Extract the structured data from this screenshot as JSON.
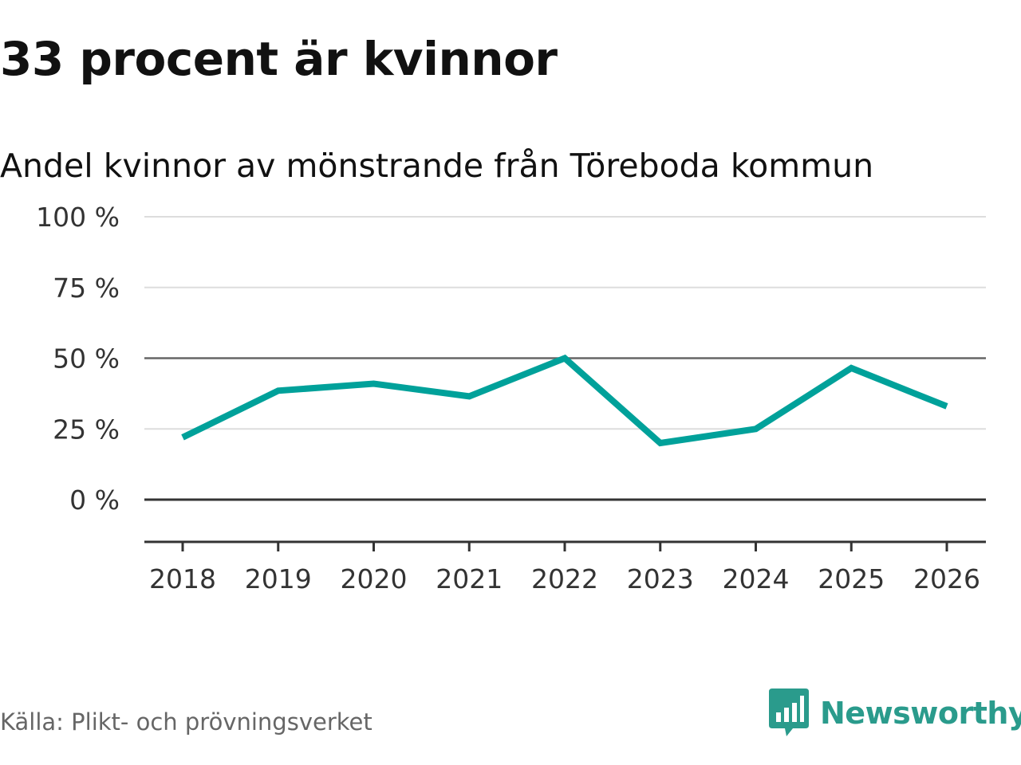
{
  "header": {
    "title": "33 procent är kvinnor",
    "subtitle": "Andel kvinnor av mönstrande från Töreboda kommun"
  },
  "footer": {
    "source": "Källa: Plikt- och prövningsverket",
    "brand": "Newsworthy",
    "brand_icon": "bar-chart-speech-bubble-icon"
  },
  "colors": {
    "line": "#00a19a",
    "grid": "#dddddd",
    "reference": "#666666",
    "axis": "#333333",
    "brand": "#2a9b8c"
  },
  "chart_data": {
    "type": "line",
    "x": [
      "2018",
      "2019",
      "2020",
      "2021",
      "2022",
      "2023",
      "2024",
      "2025",
      "2026"
    ],
    "series": [
      {
        "values": [
          22,
          38.5,
          41,
          36.5,
          50,
          20,
          25,
          46.5,
          33
        ]
      }
    ],
    "yticks": [
      0,
      25,
      50,
      75,
      100
    ],
    "ytick_labels": [
      "0 %",
      "25 %",
      "50 %",
      "75 %",
      "100 %"
    ],
    "ylim": [
      -15,
      100
    ],
    "reference_line": 50,
    "grid": true,
    "legend": "none"
  }
}
